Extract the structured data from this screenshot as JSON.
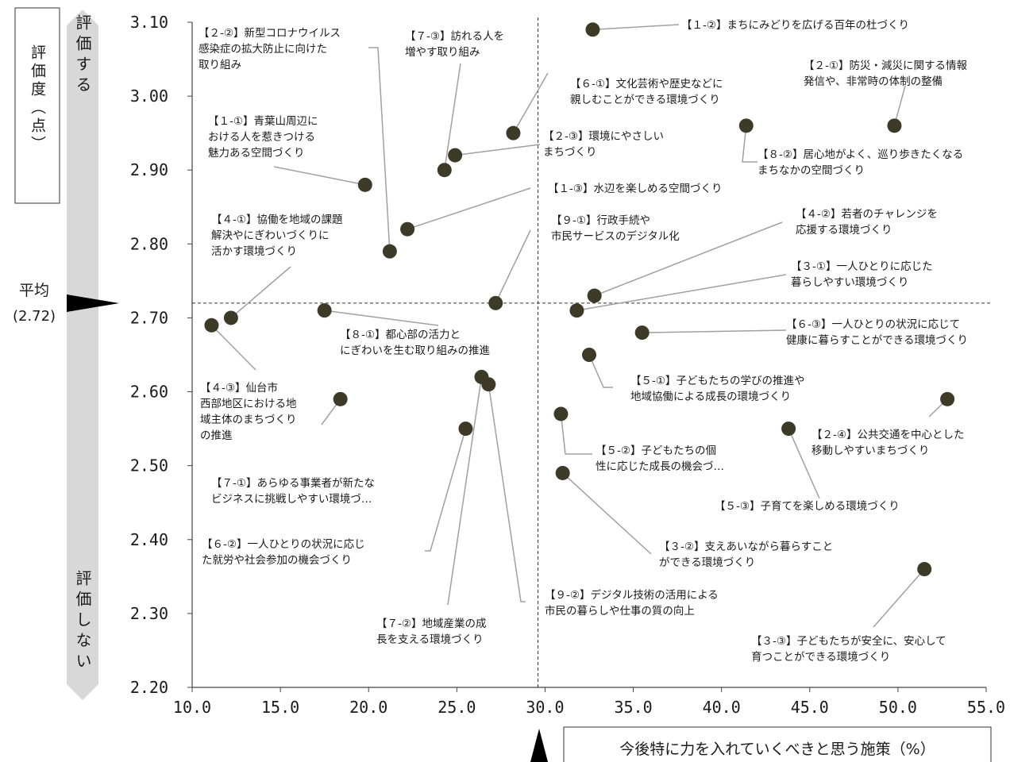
{
  "chart_data": {
    "type": "scatter",
    "xlabel": "今後特に力を入れていくべきと思う施策（%）",
    "ylabel": "評価度（点）",
    "xlim": [
      10.0,
      55.0
    ],
    "ylim": [
      2.2,
      3.1
    ],
    "x_ticks": [
      "10.0",
      "15.0",
      "20.0",
      "25.0",
      "30.0",
      "35.0",
      "40.0",
      "45.0",
      "50.0",
      "55.0"
    ],
    "y_ticks": [
      "3.10",
      "3.00",
      "2.90",
      "2.80",
      "2.70",
      "2.60",
      "2.50",
      "2.40",
      "2.30",
      "2.20"
    ],
    "y_arrow_top": "評価する",
    "y_arrow_bottom": "評価しない",
    "average": {
      "label": "平均",
      "value_text": "(2.72)",
      "y": 2.72,
      "x": 29.6
    },
    "grid": false,
    "colors": {
      "point": "#3d3a28",
      "leader": "#a0a0a0",
      "ref_line": "#333333",
      "arrow": "#d8d8d8"
    },
    "points": [
      {
        "x": 32.7,
        "y": 3.09,
        "label": [
          "【１-②】まちにみどりを広げる百年の杜づくり"
        ]
      },
      {
        "x": 49.8,
        "y": 2.96,
        "label": [
          "【２-①】防災・減災に関する情報",
          "発信や、非常時の体制の整備"
        ]
      },
      {
        "x": 41.4,
        "y": 2.96,
        "label": [
          "【８-②】居心地がよく、巡り歩きたくなる",
          "まちなかの空間づくり"
        ]
      },
      {
        "x": 28.2,
        "y": 2.95,
        "label": [
          "【６-①】文化芸術や歴史などに",
          "親しむことができる環境づくり"
        ]
      },
      {
        "x": 24.9,
        "y": 2.92,
        "label": [
          "【２-③】環境にやさしい",
          "まちづくり"
        ]
      },
      {
        "x": 24.3,
        "y": 2.9,
        "label": [
          "【７-③】訪れる人を",
          "増やす取り組み"
        ]
      },
      {
        "x": 19.8,
        "y": 2.88,
        "label": [
          "【１-①】青葉山周辺に",
          "おける人を惹きつける",
          "魅力ある空間づくり"
        ]
      },
      {
        "x": 22.2,
        "y": 2.82,
        "label": [
          "【１-③】水辺を楽しめる空間づくり"
        ]
      },
      {
        "x": 21.2,
        "y": 2.79,
        "label": [
          "【２-②】新型コロナウイルス",
          "感染症の拡大防止に向けた",
          "取り組み"
        ]
      },
      {
        "x": 27.2,
        "y": 2.72,
        "label": [
          "【９-①】行政手続や",
          "市民サービスのデジタル化"
        ]
      },
      {
        "x": 32.8,
        "y": 2.73,
        "label": [
          "【４-②】若者のチャレンジを",
          "応援する環境づくり"
        ]
      },
      {
        "x": 31.8,
        "y": 2.71,
        "label": [
          "【３-①】一人ひとりに応じた",
          "暮らしやすい環境づくり"
        ]
      },
      {
        "x": 17.5,
        "y": 2.71,
        "label": [
          "【８-①】都心部の活力と",
          "にぎわいを生む取り組みの推進"
        ]
      },
      {
        "x": 12.2,
        "y": 2.7,
        "label": [
          "【４-①】協働を地域の課題",
          "解決やにぎわいづくりに",
          "活かす環境づくり"
        ]
      },
      {
        "x": 11.1,
        "y": 2.69,
        "label": [
          "【４-③】仙台市",
          "西部地区における地",
          "域主体のまちづくり",
          "の推進"
        ]
      },
      {
        "x": 35.5,
        "y": 2.68,
        "label": [
          "【６-③】一人ひとりの状況に応じて",
          "健康に暮らすことができる環境づくり"
        ]
      },
      {
        "x": 32.5,
        "y": 2.65,
        "label": [
          "【５-①】子どもたちの学びの推進や",
          "地域協働による成長の環境づくり"
        ]
      },
      {
        "x": 26.4,
        "y": 2.62,
        "label": [
          "【７-②】地域産業の成",
          "長を支える環境づくり"
        ]
      },
      {
        "x": 26.8,
        "y": 2.61,
        "label": [
          "【９-②】デジタル技術の活用による",
          "市民の暮らしや仕事の質の向上"
        ]
      },
      {
        "x": 52.8,
        "y": 2.59,
        "label": [
          "【２-④】公共交通を中心とした",
          "移動しやすいまちづくり"
        ]
      },
      {
        "x": 18.4,
        "y": 2.59,
        "label": [
          "【７-①】あらゆる事業者が新たな",
          "ビジネスに挑戦しやすい環境づ…"
        ]
      },
      {
        "x": 30.9,
        "y": 2.57,
        "label": [
          "【５-②】子どもたちの個",
          "性に応じた成長の機会づ…"
        ]
      },
      {
        "x": 25.5,
        "y": 2.55,
        "label": [
          "【６-②】一人ひとりの状況に応じ",
          "た就労や社会参加の機会づくり"
        ]
      },
      {
        "x": 43.8,
        "y": 2.55,
        "label": [
          "【５-③】子育てを楽しめる環境づくり"
        ]
      },
      {
        "x": 31.0,
        "y": 2.49,
        "label": [
          "【３-②】支えあいながら暮らすこと",
          "ができる環境づくり"
        ]
      },
      {
        "x": 51.5,
        "y": 2.36,
        "label": [
          "【３-③】子どもたちが安全に、安心して",
          "育つことができる環境づくり"
        ]
      }
    ]
  }
}
